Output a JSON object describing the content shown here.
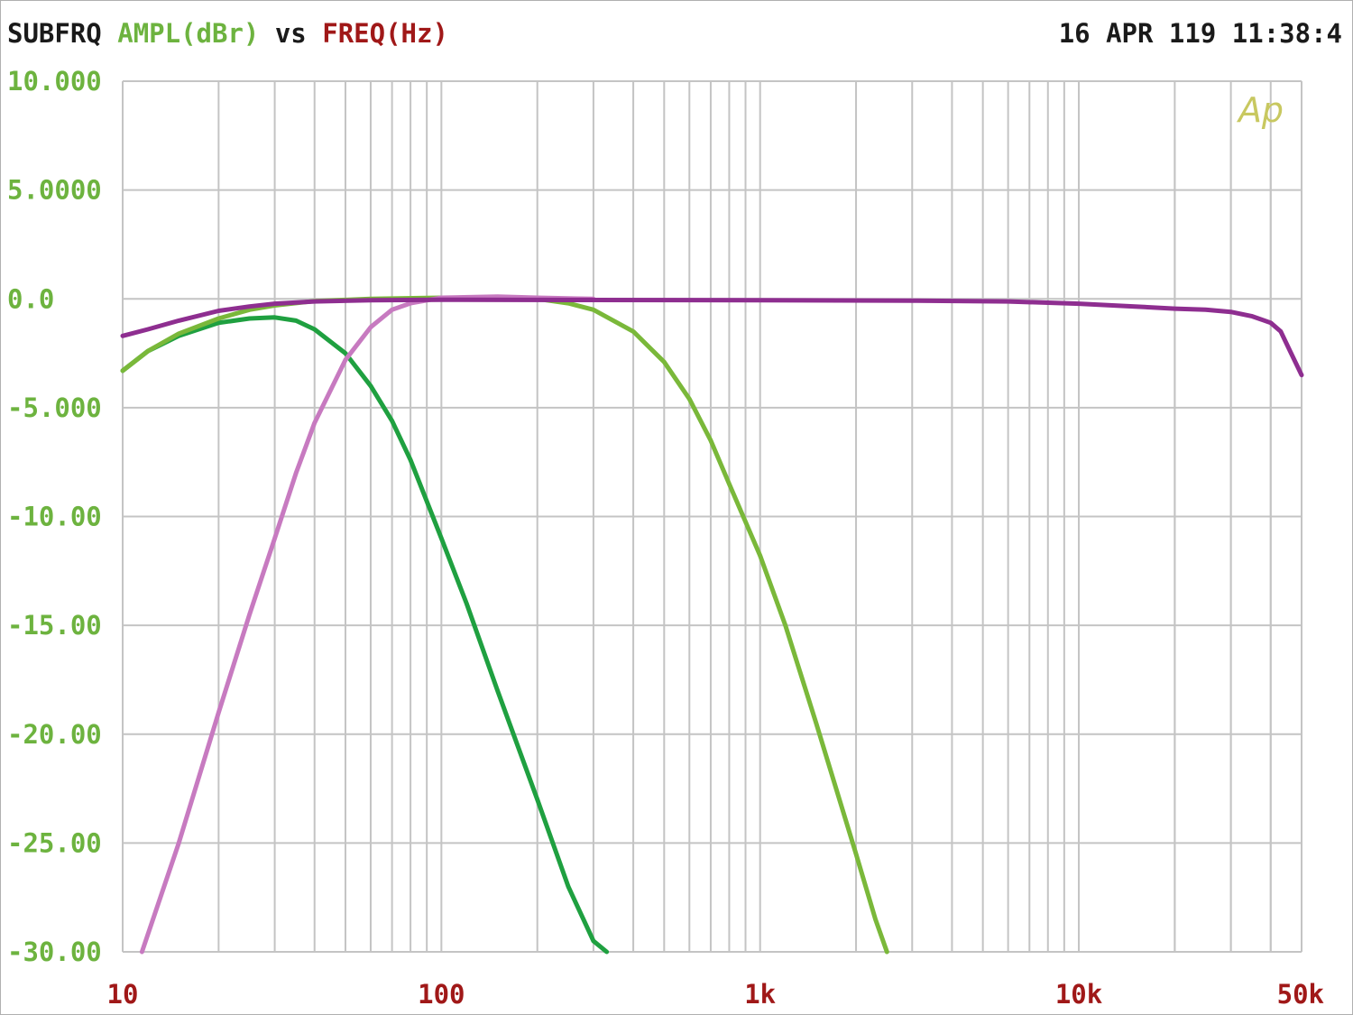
{
  "header": {
    "label_name": "SUBFRQ",
    "y_quantity": "AMPL(dBr)",
    "vs_word": "vs",
    "x_quantity": "FREQ(Hz)",
    "datetime": "16 APR 119 11:38:4"
  },
  "logo_text": "Ap",
  "colors": {
    "y_label": "#6db33f",
    "x_label": "#a01818",
    "grid": "#c4c4c4",
    "lowpass_sub": "#1fa040",
    "lowpass_mid": "#7ab83a",
    "highpass": "#c77ac0",
    "fullrange": "#8e2e90"
  },
  "chart_data": {
    "type": "line",
    "x_scale": "log",
    "xlim": [
      10,
      50000
    ],
    "ylim": [
      -30,
      10
    ],
    "grid": true,
    "x_ticks": [
      {
        "value": 10,
        "label": "10"
      },
      {
        "value": 100,
        "label": "100"
      },
      {
        "value": 1000,
        "label": "1k"
      },
      {
        "value": 10000,
        "label": "10k"
      },
      {
        "value": 50000,
        "label": "50k"
      }
    ],
    "y_ticks": [
      {
        "value": 10,
        "label": "10.000"
      },
      {
        "value": 5,
        "label": "5.0000"
      },
      {
        "value": 0,
        "label": "0.0"
      },
      {
        "value": -5,
        "label": "-5.000"
      },
      {
        "value": -10,
        "label": "-10.00"
      },
      {
        "value": -15,
        "label": "-15.00"
      },
      {
        "value": -20,
        "label": "-20.00"
      },
      {
        "value": -25,
        "label": "-25.00"
      },
      {
        "value": -30,
        "label": "-30.00"
      }
    ],
    "series": [
      {
        "color": "#1fa040",
        "points": [
          [
            10,
            -3.3
          ],
          [
            12,
            -2.4
          ],
          [
            15,
            -1.7
          ],
          [
            20,
            -1.1
          ],
          [
            25,
            -0.9
          ],
          [
            30,
            -0.85
          ],
          [
            35,
            -1.0
          ],
          [
            40,
            -1.4
          ],
          [
            50,
            -2.5
          ],
          [
            60,
            -4.0
          ],
          [
            70,
            -5.6
          ],
          [
            80,
            -7.4
          ],
          [
            100,
            -11.0
          ],
          [
            120,
            -14.0
          ],
          [
            150,
            -18.0
          ],
          [
            200,
            -23.0
          ],
          [
            250,
            -27.0
          ],
          [
            300,
            -29.5
          ],
          [
            330,
            -30.0
          ]
        ]
      },
      {
        "color": "#7ab83a",
        "points": [
          [
            10,
            -3.3
          ],
          [
            12,
            -2.4
          ],
          [
            15,
            -1.6
          ],
          [
            20,
            -0.9
          ],
          [
            25,
            -0.5
          ],
          [
            30,
            -0.3
          ],
          [
            40,
            -0.1
          ],
          [
            60,
            0.0
          ],
          [
            100,
            0.05
          ],
          [
            200,
            0.0
          ],
          [
            250,
            -0.2
          ],
          [
            300,
            -0.5
          ],
          [
            400,
            -1.5
          ],
          [
            500,
            -2.9
          ],
          [
            600,
            -4.6
          ],
          [
            700,
            -6.5
          ],
          [
            800,
            -8.5
          ],
          [
            1000,
            -11.8
          ],
          [
            1200,
            -15.0
          ],
          [
            1500,
            -19.5
          ],
          [
            2000,
            -25.5
          ],
          [
            2300,
            -28.5
          ],
          [
            2500,
            -30.0
          ]
        ]
      },
      {
        "color": "#c77ac0",
        "points": [
          [
            11.5,
            -30.0
          ],
          [
            15,
            -25.0
          ],
          [
            20,
            -19.0
          ],
          [
            25,
            -14.5
          ],
          [
            30,
            -11.0
          ],
          [
            35,
            -8.0
          ],
          [
            40,
            -5.7
          ],
          [
            50,
            -2.8
          ],
          [
            60,
            -1.3
          ],
          [
            70,
            -0.5
          ],
          [
            80,
            -0.2
          ],
          [
            100,
            0.05
          ],
          [
            150,
            0.1
          ],
          [
            200,
            0.05
          ],
          [
            250,
            0.02
          ],
          [
            300,
            0.0
          ]
        ]
      },
      {
        "color": "#8e2e90",
        "points": [
          [
            10,
            -1.7
          ],
          [
            12,
            -1.4
          ],
          [
            15,
            -1.0
          ],
          [
            20,
            -0.55
          ],
          [
            25,
            -0.35
          ],
          [
            30,
            -0.22
          ],
          [
            40,
            -0.12
          ],
          [
            60,
            -0.06
          ],
          [
            100,
            -0.04
          ],
          [
            300,
            -0.05
          ],
          [
            1000,
            -0.06
          ],
          [
            3000,
            -0.08
          ],
          [
            6000,
            -0.12
          ],
          [
            10000,
            -0.22
          ],
          [
            15000,
            -0.35
          ],
          [
            20000,
            -0.45
          ],
          [
            25000,
            -0.5
          ],
          [
            30000,
            -0.6
          ],
          [
            35000,
            -0.8
          ],
          [
            40000,
            -1.1
          ],
          [
            43000,
            -1.5
          ],
          [
            46000,
            -2.4
          ],
          [
            50000,
            -3.5
          ]
        ]
      }
    ]
  }
}
